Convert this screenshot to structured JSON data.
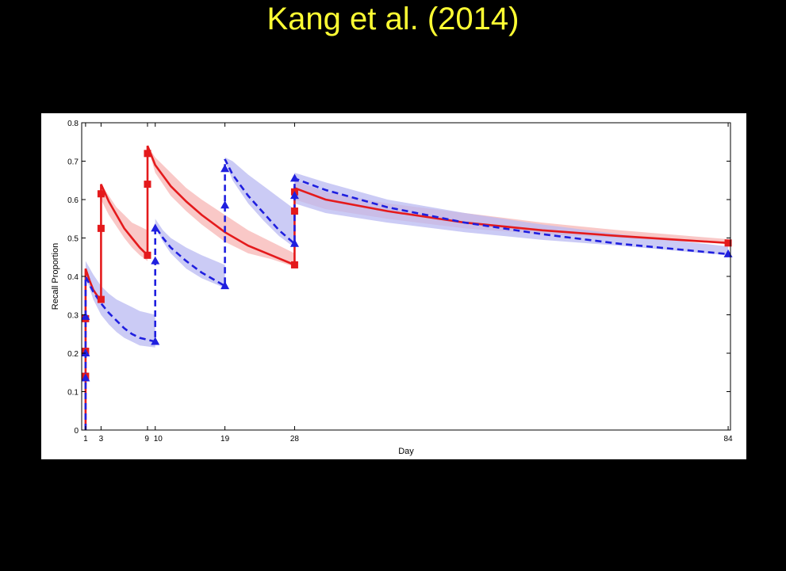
{
  "slide": {
    "title": "Kang et al. (2014)"
  },
  "chart_data": {
    "type": "line",
    "title": "",
    "xlabel": "Day",
    "ylabel": "Recall Proportion",
    "xlim": [
      0.5,
      84.3
    ],
    "ylim": [
      0,
      0.8
    ],
    "xticks": [
      1,
      3,
      9,
      10,
      19,
      28,
      84
    ],
    "xtick_labels": [
      "1",
      "3",
      "9",
      "10",
      "19",
      "28",
      "84"
    ],
    "yticks": [
      0,
      0.1,
      0.2,
      0.3,
      0.4,
      0.5,
      0.6,
      0.7,
      0.8
    ],
    "ytick_labels": [
      "0",
      "0.1",
      "0.2",
      "0.3",
      "0.4",
      "0.5",
      "0.6",
      "0.7",
      "0.8"
    ],
    "grid": false,
    "series": [
      {
        "color": "#e41a1c",
        "line_style": "solid",
        "marker": "square",
        "band_color": "#f7b6b4",
        "curve": [
          [
            1,
            0
          ],
          [
            1,
            0.42
          ],
          [
            1.5,
            0.39
          ],
          [
            2,
            0.365
          ],
          [
            2.5,
            0.35
          ],
          [
            3,
            0.34
          ],
          [
            3,
            0.64
          ],
          [
            4,
            0.595
          ],
          [
            5,
            0.56
          ],
          [
            6,
            0.525
          ],
          [
            7,
            0.5
          ],
          [
            8,
            0.475
          ],
          [
            9,
            0.455
          ],
          [
            9,
            0.74
          ],
          [
            10,
            0.69
          ],
          [
            12,
            0.635
          ],
          [
            14,
            0.595
          ],
          [
            16,
            0.56
          ],
          [
            19,
            0.515
          ],
          [
            22,
            0.48
          ],
          [
            25,
            0.455
          ],
          [
            28,
            0.43
          ],
          [
            28,
            0.63
          ],
          [
            32,
            0.6
          ],
          [
            40,
            0.57
          ],
          [
            50,
            0.54
          ],
          [
            60,
            0.52
          ],
          [
            70,
            0.505
          ],
          [
            84,
            0.487
          ]
        ],
        "points": [
          [
            1,
            0.14
          ],
          [
            1,
            0.205
          ],
          [
            1,
            0.29
          ],
          [
            3,
            0.34
          ],
          [
            3,
            0.525
          ],
          [
            3,
            0.615
          ],
          [
            9,
            0.455
          ],
          [
            9,
            0.64
          ],
          [
            9,
            0.72
          ],
          [
            28,
            0.43
          ],
          [
            28,
            0.57
          ],
          [
            28,
            0.62
          ],
          [
            84,
            0.487
          ]
        ],
        "band": [
          [
            [
              3,
              0.64
            ],
            [
              4,
              0.61
            ],
            [
              5,
              0.58
            ],
            [
              6,
              0.56
            ],
            [
              7,
              0.54
            ],
            [
              8,
              0.53
            ],
            [
              9,
              0.52
            ]
          ],
          [
            [
              3,
              0.6
            ],
            [
              4,
              0.56
            ],
            [
              5,
              0.53
            ],
            [
              6,
              0.5
            ],
            [
              7,
              0.475
            ],
            [
              8,
              0.455
            ],
            [
              9,
              0.44
            ]
          ],
          [
            [
              9,
              0.74
            ],
            [
              10,
              0.71
            ],
            [
              12,
              0.67
            ],
            [
              14,
              0.63
            ],
            [
              16,
              0.6
            ],
            [
              19,
              0.56
            ],
            [
              22,
              0.52
            ],
            [
              25,
              0.49
            ],
            [
              28,
              0.46
            ]
          ],
          [
            [
              9,
              0.74
            ],
            [
              10,
              0.67
            ],
            [
              12,
              0.61
            ],
            [
              14,
              0.57
            ],
            [
              16,
              0.535
            ],
            [
              19,
              0.49
            ],
            [
              22,
              0.46
            ],
            [
              25,
              0.445
            ],
            [
              28,
              0.425
            ]
          ],
          [
            [
              28,
              0.65
            ],
            [
              32,
              0.62
            ],
            [
              40,
              0.59
            ],
            [
              50,
              0.565
            ],
            [
              60,
              0.54
            ],
            [
              70,
              0.52
            ],
            [
              84,
              0.497
            ]
          ],
          [
            [
              28,
              0.6
            ],
            [
              32,
              0.575
            ],
            [
              40,
              0.55
            ],
            [
              50,
              0.525
            ],
            [
              60,
              0.51
            ],
            [
              70,
              0.5
            ],
            [
              84,
              0.485
            ]
          ]
        ]
      },
      {
        "color": "#1f1fdf",
        "line_style": "dashed",
        "marker": "triangle",
        "band_color": "#b9b9f2",
        "curve": [
          [
            1,
            0
          ],
          [
            1,
            0.4
          ],
          [
            2,
            0.36
          ],
          [
            3,
            0.33
          ],
          [
            4,
            0.305
          ],
          [
            5,
            0.285
          ],
          [
            6,
            0.265
          ],
          [
            7,
            0.25
          ],
          [
            8,
            0.24
          ],
          [
            10,
            0.23
          ],
          [
            10,
            0.53
          ],
          [
            11,
            0.5
          ],
          [
            12,
            0.475
          ],
          [
            14,
            0.44
          ],
          [
            16,
            0.41
          ],
          [
            19,
            0.375
          ],
          [
            19,
            0.705
          ],
          [
            20,
            0.665
          ],
          [
            22,
            0.61
          ],
          [
            24,
            0.565
          ],
          [
            26,
            0.52
          ],
          [
            28,
            0.485
          ],
          [
            28,
            0.655
          ],
          [
            32,
            0.625
          ],
          [
            40,
            0.58
          ],
          [
            50,
            0.54
          ],
          [
            60,
            0.51
          ],
          [
            70,
            0.485
          ],
          [
            84,
            0.458
          ]
        ],
        "points": [
          [
            1,
            0.135
          ],
          [
            1,
            0.2
          ],
          [
            1,
            0.295
          ],
          [
            10,
            0.23
          ],
          [
            10,
            0.44
          ],
          [
            10,
            0.525
          ],
          [
            19,
            0.375
          ],
          [
            19,
            0.585
          ],
          [
            19,
            0.68
          ],
          [
            28,
            0.485
          ],
          [
            28,
            0.61
          ],
          [
            28,
            0.655
          ],
          [
            84,
            0.458
          ]
        ],
        "band": [
          [
            [
              1,
              0.44
            ],
            [
              2,
              0.405
            ],
            [
              3,
              0.375
            ],
            [
              4,
              0.355
            ],
            [
              5,
              0.34
            ],
            [
              6,
              0.33
            ],
            [
              7,
              0.32
            ],
            [
              8,
              0.31
            ],
            [
              10,
              0.3
            ]
          ],
          [
            [
              1,
              0.4
            ],
            [
              2,
              0.34
            ],
            [
              3,
              0.3
            ],
            [
              4,
              0.275
            ],
            [
              5,
              0.255
            ],
            [
              6,
              0.24
            ],
            [
              7,
              0.23
            ],
            [
              8,
              0.22
            ],
            [
              10,
              0.215
            ]
          ],
          [
            [
              10,
              0.55
            ],
            [
              11,
              0.52
            ],
            [
              12,
              0.5
            ],
            [
              14,
              0.475
            ],
            [
              16,
              0.455
            ],
            [
              19,
              0.43
            ]
          ],
          [
            [
              10,
              0.53
            ],
            [
              11,
              0.49
            ],
            [
              12,
              0.46
            ],
            [
              14,
              0.42
            ],
            [
              16,
              0.395
            ],
            [
              19,
              0.37
            ]
          ],
          [
            [
              19,
              0.71
            ],
            [
              20,
              0.7
            ],
            [
              22,
              0.665
            ],
            [
              24,
              0.635
            ],
            [
              26,
              0.605
            ],
            [
              28,
              0.575
            ]
          ],
          [
            [
              19,
              0.7
            ],
            [
              20,
              0.65
            ],
            [
              22,
              0.59
            ],
            [
              24,
              0.545
            ],
            [
              26,
              0.505
            ],
            [
              28,
              0.475
            ]
          ],
          [
            [
              28,
              0.67
            ],
            [
              32,
              0.645
            ],
            [
              40,
              0.6
            ],
            [
              50,
              0.565
            ],
            [
              60,
              0.535
            ],
            [
              70,
              0.51
            ],
            [
              84,
              0.478
            ]
          ],
          [
            [
              28,
              0.59
            ],
            [
              32,
              0.565
            ],
            [
              40,
              0.54
            ],
            [
              50,
              0.515
            ],
            [
              60,
              0.495
            ],
            [
              70,
              0.48
            ],
            [
              84,
              0.455
            ]
          ]
        ]
      }
    ]
  }
}
